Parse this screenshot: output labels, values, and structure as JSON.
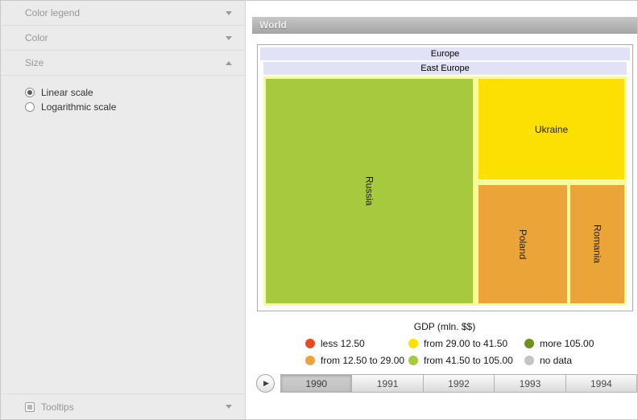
{
  "sidebar": {
    "sections": [
      {
        "label": "Color legend",
        "state": "collapsed"
      },
      {
        "label": "Color",
        "state": "collapsed"
      },
      {
        "label": "Size",
        "state": "expanded"
      }
    ],
    "size_options": [
      {
        "label": "Linear scale",
        "selected": true
      },
      {
        "label": "Logarithmic scale",
        "selected": false
      }
    ],
    "tooltips": {
      "label": "Tooltips",
      "checked": false
    }
  },
  "header": {
    "title": "World"
  },
  "treemap": {
    "region": "Europe",
    "subregion": "East Europe",
    "group_fill": "#fafa9c",
    "band_fill": "#e2e2f6",
    "cells": [
      {
        "name": "Russia",
        "color": "#a6c93d"
      },
      {
        "name": "Ukraine",
        "color": "#fcdf03"
      },
      {
        "name": "Poland",
        "color": "#eba437"
      },
      {
        "name": "Romania",
        "color": "#eba437"
      }
    ]
  },
  "legend": {
    "title": "GDP (mln. $$)",
    "items": [
      {
        "label": "less 12.50",
        "color": "#e84a20"
      },
      {
        "label": "from 29.00 to 41.50",
        "color": "#fcdf03"
      },
      {
        "label": "more 105.00",
        "color": "#6d9021"
      },
      {
        "label": "from 12.50 to 29.00",
        "color": "#eba437"
      },
      {
        "label": "from 41.50 to 105.00",
        "color": "#a6c93d"
      },
      {
        "label": "no data",
        "color": "#c4c4c4"
      }
    ]
  },
  "timeline": {
    "play_icon": "▶",
    "years": [
      {
        "label": "1990",
        "selected": true
      },
      {
        "label": "1991",
        "selected": false
      },
      {
        "label": "1992",
        "selected": false
      },
      {
        "label": "1993",
        "selected": false
      },
      {
        "label": "1994",
        "selected": false
      }
    ]
  },
  "chart_data": {
    "type": "treemap",
    "title": "World",
    "drilldown_path": [
      "World",
      "Europe",
      "East Europe"
    ],
    "legend_title": "GDP (mln. $$)",
    "color_bins": [
      {
        "label": "less 12.50",
        "color": "#e84a20"
      },
      {
        "label": "from 12.50 to 29.00",
        "color": "#eba437"
      },
      {
        "label": "from 29.00 to 41.50",
        "color": "#fcdf03"
      },
      {
        "label": "from 41.50 to 105.00",
        "color": "#a6c93d"
      },
      {
        "label": "more 105.00",
        "color": "#6d9021"
      },
      {
        "label": "no data",
        "color": "#c4c4c4"
      }
    ],
    "nodes": [
      {
        "name": "Russia",
        "parent": "East Europe",
        "gdp_bin": "from 41.50 to 105.00",
        "area_share_est": 0.57
      },
      {
        "name": "Ukraine",
        "parent": "East Europe",
        "gdp_bin": "from 29.00 to 41.50",
        "area_share_est": 0.18
      },
      {
        "name": "Poland",
        "parent": "East Europe",
        "gdp_bin": "from 12.50 to 29.00",
        "area_share_est": 0.12
      },
      {
        "name": "Romania",
        "parent": "East Europe",
        "gdp_bin": "from 12.50 to 29.00",
        "area_share_est": 0.08
      }
    ],
    "current_year": "1990",
    "years": [
      "1990",
      "1991",
      "1992",
      "1993",
      "1994"
    ],
    "size_scale": "linear"
  }
}
